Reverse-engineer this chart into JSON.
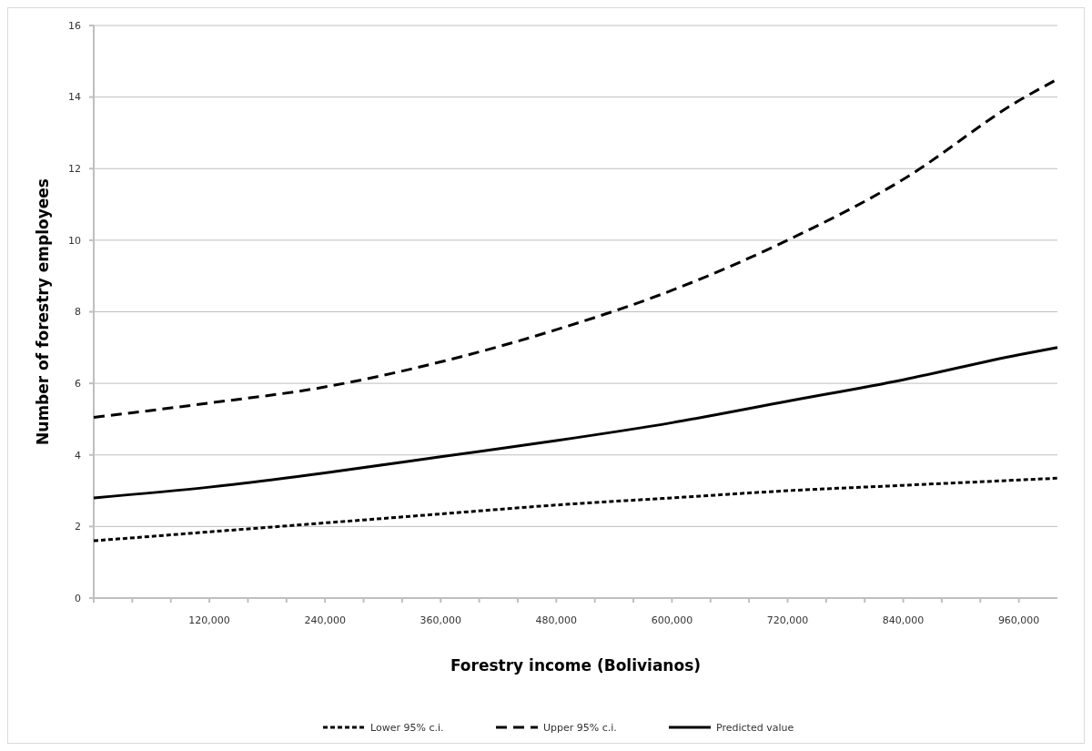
{
  "chart_data": {
    "type": "line",
    "xlabel": "Forestry income (Bolivianos)",
    "ylabel": "Number of forestry employees",
    "x": [
      0,
      120000,
      240000,
      360000,
      480000,
      600000,
      720000,
      840000,
      960000,
      1000000
    ],
    "xlim": [
      0,
      1000000
    ],
    "xticks": [
      {
        "value": 0,
        "label": null
      },
      {
        "value": 40000,
        "label": null
      },
      {
        "value": 80000,
        "label": null
      },
      {
        "value": 120000,
        "label": "120,000"
      },
      {
        "value": 160000,
        "label": null
      },
      {
        "value": 200000,
        "label": null
      },
      {
        "value": 240000,
        "label": "240,000"
      },
      {
        "value": 280000,
        "label": null
      },
      {
        "value": 320000,
        "label": null
      },
      {
        "value": 360000,
        "label": "360,000"
      },
      {
        "value": 400000,
        "label": null
      },
      {
        "value": 440000,
        "label": null
      },
      {
        "value": 480000,
        "label": "480,000"
      },
      {
        "value": 520000,
        "label": null
      },
      {
        "value": 560000,
        "label": null
      },
      {
        "value": 600000,
        "label": "600,000"
      },
      {
        "value": 640000,
        "label": null
      },
      {
        "value": 680000,
        "label": null
      },
      {
        "value": 720000,
        "label": "720,000"
      },
      {
        "value": 760000,
        "label": null
      },
      {
        "value": 800000,
        "label": null
      },
      {
        "value": 840000,
        "label": "840,000"
      },
      {
        "value": 880000,
        "label": null
      },
      {
        "value": 920000,
        "label": null
      },
      {
        "value": 960000,
        "label": "960,000"
      }
    ],
    "ylim": [
      0,
      16
    ],
    "yticks": [
      0,
      2,
      4,
      6,
      8,
      10,
      12,
      14,
      16
    ],
    "grid": "y",
    "legend": "bottom",
    "series": [
      {
        "name": "Lower 95% c.i.",
        "color": "#000000",
        "line_style": "dotted",
        "values": [
          1.6,
          1.85,
          2.1,
          2.35,
          2.6,
          2.8,
          3.0,
          3.15,
          3.3,
          3.35
        ]
      },
      {
        "name": "Upper 95% c.i.",
        "color": "#000000",
        "line_style": "dashed",
        "values": [
          5.05,
          5.45,
          5.9,
          6.6,
          7.5,
          8.6,
          10.0,
          11.7,
          13.9,
          14.5
        ]
      },
      {
        "name": "Predicted value",
        "color": "#000000",
        "line_style": "solid",
        "values": [
          2.8,
          3.1,
          3.5,
          3.95,
          4.4,
          4.9,
          5.5,
          6.1,
          6.8,
          7.0
        ]
      }
    ]
  }
}
